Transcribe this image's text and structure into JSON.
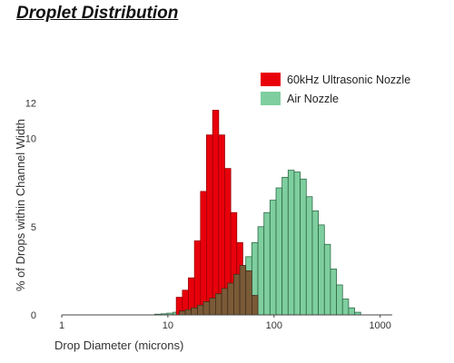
{
  "page": {
    "title": "Droplet Distribution"
  },
  "chart_data": {
    "type": "bar",
    "xlabel": "Drop Diameter (microns)",
    "ylabel": "% of Drops within Channel Width",
    "xscale": "log",
    "xlim": [
      1,
      1300
    ],
    "ylim": [
      0,
      12.5
    ],
    "xticks": [
      {
        "value": 1,
        "label": "1"
      },
      {
        "value": 10,
        "label": "10"
      },
      {
        "value": 100,
        "label": "100"
      },
      {
        "value": 1000,
        "label": "1000"
      }
    ],
    "yticks": [
      {
        "value": 0,
        "label": "0"
      },
      {
        "value": 5,
        "label": "5"
      },
      {
        "value": 10,
        "label": "10"
      },
      {
        "value": 12,
        "label": "12"
      }
    ],
    "legend_position": "top-right",
    "series": [
      {
        "name": "60kHz Ultrasonic Nozzle",
        "color": "#e8000b",
        "edge": "#9a0008",
        "bins": [
          {
            "x0": 12,
            "x1": 13.7,
            "y": 1.0
          },
          {
            "x0": 13.7,
            "x1": 15.6,
            "y": 1.4
          },
          {
            "x0": 15.6,
            "x1": 17.8,
            "y": 2.1
          },
          {
            "x0": 17.8,
            "x1": 20.3,
            "y": 4.2
          },
          {
            "x0": 20.3,
            "x1": 23.1,
            "y": 7.0
          },
          {
            "x0": 23.1,
            "x1": 26.4,
            "y": 10.2
          },
          {
            "x0": 26.4,
            "x1": 30.1,
            "y": 11.6
          },
          {
            "x0": 30.1,
            "x1": 34.3,
            "y": 10.2
          },
          {
            "x0": 34.3,
            "x1": 39.1,
            "y": 8.3
          },
          {
            "x0": 39.1,
            "x1": 44.6,
            "y": 5.8
          },
          {
            "x0": 44.6,
            "x1": 50.8,
            "y": 4.1
          },
          {
            "x0": 50.8,
            "x1": 57.9,
            "y": 2.5
          },
          {
            "x0": 57.9,
            "x1": 66.1,
            "y": 1.1
          }
        ]
      },
      {
        "name": "Air Nozzle",
        "color": "#7fce9f",
        "edge": "#2c6a44",
        "bins": [
          {
            "x0": 7.5,
            "x1": 8.6,
            "y": 0.04
          },
          {
            "x0": 8.6,
            "x1": 9.8,
            "y": 0.06
          },
          {
            "x0": 9.8,
            "x1": 11.2,
            "y": 0.1
          },
          {
            "x0": 11.2,
            "x1": 12.8,
            "y": 0.15
          },
          {
            "x0": 12.8,
            "x1": 14.6,
            "y": 0.22
          },
          {
            "x0": 14.6,
            "x1": 16.6,
            "y": 0.3
          },
          {
            "x0": 16.6,
            "x1": 19.0,
            "y": 0.4
          },
          {
            "x0": 19.0,
            "x1": 21.6,
            "y": 0.55
          },
          {
            "x0": 21.6,
            "x1": 24.7,
            "y": 0.75
          },
          {
            "x0": 24.7,
            "x1": 28.1,
            "y": 0.95
          },
          {
            "x0": 28.1,
            "x1": 32.1,
            "y": 1.2
          },
          {
            "x0": 32.1,
            "x1": 36.6,
            "y": 1.5
          },
          {
            "x0": 36.6,
            "x1": 41.7,
            "y": 1.8
          },
          {
            "x0": 41.7,
            "x1": 47.6,
            "y": 2.3
          },
          {
            "x0": 47.6,
            "x1": 54.2,
            "y": 2.8
          },
          {
            "x0": 54.2,
            "x1": 61.8,
            "y": 3.3
          },
          {
            "x0": 61.8,
            "x1": 70.5,
            "y": 4.1
          },
          {
            "x0": 70.5,
            "x1": 80.4,
            "y": 5.0
          },
          {
            "x0": 80.4,
            "x1": 91.6,
            "y": 5.8
          },
          {
            "x0": 91.6,
            "x1": 104.5,
            "y": 6.5
          },
          {
            "x0": 104.5,
            "x1": 119.1,
            "y": 7.2
          },
          {
            "x0": 119.1,
            "x1": 135.8,
            "y": 7.8
          },
          {
            "x0": 135.8,
            "x1": 154.8,
            "y": 8.2
          },
          {
            "x0": 154.8,
            "x1": 176.5,
            "y": 8.1
          },
          {
            "x0": 176.5,
            "x1": 201.3,
            "y": 7.7
          },
          {
            "x0": 201.3,
            "x1": 229.5,
            "y": 6.7
          },
          {
            "x0": 229.5,
            "x1": 261.6,
            "y": 5.9
          },
          {
            "x0": 261.6,
            "x1": 298.3,
            "y": 5.1
          },
          {
            "x0": 298.3,
            "x1": 340.1,
            "y": 4.0
          },
          {
            "x0": 340.1,
            "x1": 387.7,
            "y": 2.6
          },
          {
            "x0": 387.7,
            "x1": 442.1,
            "y": 1.7
          },
          {
            "x0": 442.1,
            "x1": 504.0,
            "y": 0.9
          },
          {
            "x0": 504.0,
            "x1": 574.7,
            "y": 0.4
          },
          {
            "x0": 574.7,
            "x1": 655.3,
            "y": 0.15
          }
        ]
      }
    ]
  }
}
